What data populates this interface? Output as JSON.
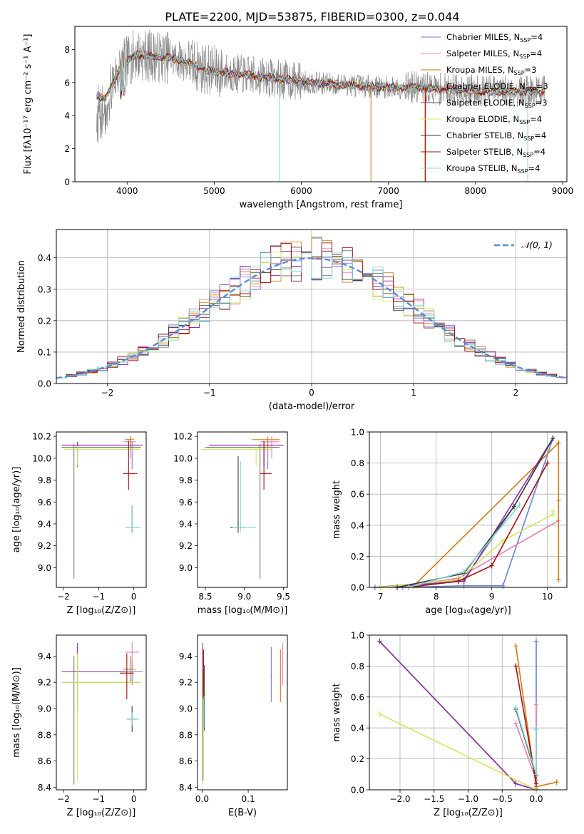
{
  "figure_title": "PLATE=2200, MJD=53875, FIBERID=0300, z=0.044",
  "colors": {
    "Chabrier MILES": "#6a7fd8",
    "Salpeter MILES": "#e87fb0",
    "Kroupa MILES": "#cf7a12",
    "Chabrier ELODIE": "#7a7a7a",
    "Salpeter ELODIE": "#8e2ea8",
    "Kroupa ELODIE": "#d2e65a",
    "Chabrier STELIB": "#3a3a3a",
    "Salpeter STELIB": "#a01010",
    "Kroupa STELIB": "#7fd6d6",
    "data": "#8a8a8a",
    "gaussian": "#5b8bd6"
  },
  "chart_data": [
    {
      "id": "spectrum",
      "type": "line",
      "xlabel": "wavelength [Angstrom, rest frame]",
      "ylabel": "Flux [fλ10⁻¹⁷ erg cm⁻² s⁻¹ A⁻¹]",
      "xlim": [
        3400,
        9050
      ],
      "ylim": [
        0,
        9.4
      ],
      "xticks": [
        4000,
        5000,
        6000,
        7000,
        8000,
        9000
      ],
      "yticks": [
        0,
        2,
        4,
        6,
        8
      ],
      "legend_position": "top-right",
      "legend": [
        {
          "label": "Chabrier MILES, N",
          "sub": "SSP",
          "tail": "=4"
        },
        {
          "label": "Salpeter MILES, N",
          "sub": "SSP",
          "tail": "=4"
        },
        {
          "label": "Kroupa MILES, N",
          "sub": "SSP",
          "tail": "=3"
        },
        {
          "label": "Chabrier ELODIE, N",
          "sub": "SSP",
          "tail": "=3"
        },
        {
          "label": "Salpeter ELODIE, N",
          "sub": "SSP",
          "tail": "=3"
        },
        {
          "label": "Kroupa ELODIE, N",
          "sub": "SSP",
          "tail": "=4"
        },
        {
          "label": "Chabrier STELIB, N",
          "sub": "SSP",
          "tail": "=4"
        },
        {
          "label": "Salpeter STELIB, N",
          "sub": "SSP",
          "tail": "=4"
        },
        {
          "label": "Kroupa STELIB, N",
          "sub": "SSP",
          "tail": "=4"
        }
      ],
      "continuum": [
        [
          3650,
          5.2
        ],
        [
          3750,
          5.0
        ],
        [
          3800,
          5.6
        ],
        [
          3900,
          6.7
        ],
        [
          4000,
          7.3
        ],
        [
          4100,
          7.7
        ],
        [
          4300,
          7.6
        ],
        [
          4500,
          7.5
        ],
        [
          4700,
          7.2
        ],
        [
          4900,
          6.8
        ],
        [
          5100,
          6.6
        ],
        [
          5300,
          6.5
        ],
        [
          5500,
          6.4
        ],
        [
          5800,
          6.2
        ],
        [
          6100,
          6.0
        ],
        [
          6400,
          5.9
        ],
        [
          6700,
          5.8
        ],
        [
          7000,
          5.7
        ],
        [
          7300,
          5.7
        ],
        [
          7600,
          5.6
        ],
        [
          8000,
          5.5
        ],
        [
          8400,
          5.45
        ],
        [
          8800,
          5.5
        ]
      ],
      "model_range": [
        3650,
        8800
      ]
    },
    {
      "id": "residuals",
      "type": "histogram",
      "xlabel": "(data-model)/error",
      "ylabel": "Normed distribution",
      "xlim": [
        -2.5,
        2.5
      ],
      "ylim": [
        0,
        0.49
      ],
      "xticks": [
        -2,
        -1,
        0,
        1,
        2
      ],
      "yticks": [
        0.0,
        0.1,
        0.2,
        0.3,
        0.4
      ],
      "grid": true,
      "bin_width": 0.1,
      "legend_position": "top-right",
      "gaussian_label": "𝒩(0, 1)"
    },
    {
      "id": "age_vs_Z",
      "type": "errorbar",
      "xlabel": "Z [log₁₀(Z/Z⊙)]",
      "ylabel": "age  [log₁₀(age/yr)]",
      "xlim": [
        -2.2,
        0.35
      ],
      "ylim": [
        8.82,
        10.24
      ],
      "xticks": [
        -2,
        -1,
        0
      ],
      "yticks": [
        9.0,
        9.2,
        9.4,
        9.6,
        9.8,
        10.0,
        10.2
      ],
      "points": [
        {
          "model": "Chabrier MILES",
          "x": -0.05,
          "y": 10.1,
          "xerr": [
            0.3,
            0.2
          ],
          "yerr": [
            0.2,
            0.05
          ]
        },
        {
          "model": "Salpeter MILES",
          "x": -0.1,
          "y": 10.15,
          "xerr": [
            0.2,
            0.15
          ],
          "yerr": [
            0.15,
            0.05
          ]
        },
        {
          "model": "Kroupa MILES",
          "x": -0.1,
          "y": 10.17,
          "xerr": [
            0.15,
            0.1
          ],
          "yerr": [
            0.1,
            0.03
          ]
        },
        {
          "model": "Chabrier ELODIE",
          "x": -1.7,
          "y": 10.1,
          "xerr": [
            0.35,
            1.9
          ],
          "yerr": [
            1.2,
            0.03
          ]
        },
        {
          "model": "Salpeter ELODIE",
          "x": -1.6,
          "y": 10.12,
          "xerr": [
            0.45,
            1.85
          ],
          "yerr": [
            0.2,
            0.03
          ]
        },
        {
          "model": "Kroupa ELODIE",
          "x": -1.6,
          "y": 10.08,
          "xerr": [
            0.4,
            1.8
          ],
          "yerr": [
            0.15,
            0.03
          ]
        },
        {
          "model": "Chabrier STELIB",
          "x": -0.05,
          "y": 9.37,
          "xerr": [
            0.15,
            0.15
          ],
          "yerr": [
            0.05,
            0.2
          ]
        },
        {
          "model": "Salpeter STELIB",
          "x": -0.15,
          "y": 9.86,
          "xerr": [
            0.15,
            0.25
          ],
          "yerr": [
            0.15,
            0.3
          ]
        },
        {
          "model": "Kroupa STELIB",
          "x": -0.05,
          "y": 9.37,
          "xerr": [
            0.2,
            0.25
          ],
          "yerr": [
            0.05,
            0.2
          ]
        }
      ]
    },
    {
      "id": "age_vs_mass",
      "type": "errorbar",
      "xlabel": "mass [log₁₀(M/M⊙)]",
      "ylabel": "",
      "xlim": [
        8.4,
        9.55
      ],
      "ylim": [
        8.82,
        10.24
      ],
      "xticks": [
        8.5,
        9.0,
        9.5
      ],
      "yticks": [
        9.0,
        9.2,
        9.4,
        9.6,
        9.8,
        10.0,
        10.2
      ],
      "points": [
        {
          "model": "Chabrier MILES",
          "x": 9.3,
          "y": 10.1,
          "xerr": [
            0.2,
            0.1
          ],
          "yerr": [
            0.2,
            0.05
          ]
        },
        {
          "model": "Salpeter MILES",
          "x": 9.35,
          "y": 10.15,
          "xerr": [
            0.15,
            0.1
          ],
          "yerr": [
            0.15,
            0.05
          ]
        },
        {
          "model": "Kroupa MILES",
          "x": 9.3,
          "y": 10.17,
          "xerr": [
            0.2,
            0.15
          ],
          "yerr": [
            0.1,
            0.03
          ]
        },
        {
          "model": "Chabrier ELODIE",
          "x": 9.2,
          "y": 10.1,
          "xerr": [
            0.7,
            0.25
          ],
          "yerr": [
            1.2,
            0.03
          ]
        },
        {
          "model": "Salpeter ELODIE",
          "x": 9.25,
          "y": 10.12,
          "xerr": [
            0.7,
            0.25
          ],
          "yerr": [
            0.2,
            0.03
          ]
        },
        {
          "model": "Kroupa ELODIE",
          "x": 9.15,
          "y": 10.08,
          "xerr": [
            0.7,
            0.2
          ],
          "yerr": [
            0.15,
            0.03
          ]
        },
        {
          "model": "Chabrier STELIB",
          "x": 8.92,
          "y": 9.37,
          "xerr": [
            0.1,
            0.1
          ],
          "yerr": [
            0.05,
            0.65
          ]
        },
        {
          "model": "Salpeter STELIB",
          "x": 9.25,
          "y": 9.86,
          "xerr": [
            0.05,
            0.1
          ],
          "yerr": [
            0.15,
            0.3
          ]
        },
        {
          "model": "Kroupa STELIB",
          "x": 8.95,
          "y": 9.37,
          "xerr": [
            0.1,
            0.2
          ],
          "yerr": [
            0.05,
            0.6
          ]
        }
      ]
    },
    {
      "id": "massweight_vs_age",
      "type": "line",
      "xlabel": "age  [log₁₀(age/yr)]",
      "ylabel": "mass weight",
      "xlim": [
        6.8,
        10.35
      ],
      "ylim": [
        0,
        1.0
      ],
      "xticks": [
        7,
        8,
        9,
        10
      ],
      "yticks": [
        0.0,
        0.2,
        0.4,
        0.6,
        0.8,
        1.0
      ],
      "grid": true,
      "series": [
        {
          "model": "Chabrier MILES",
          "x": [
            7.4,
            8.5,
            9.2,
            10.1
          ],
          "y": [
            0.0,
            0.01,
            0.01,
            0.96
          ]
        },
        {
          "model": "Salpeter MILES",
          "x": [
            7.3,
            8.4,
            10.2
          ],
          "y": [
            0.0,
            0.06,
            0.43
          ]
        },
        {
          "model": "Kroupa MILES",
          "x": [
            7.6,
            10.2,
            10.2,
            10.2
          ],
          "y": [
            0.01,
            0.93,
            0.56,
            0.05
          ]
        },
        {
          "model": "Chabrier ELODIE",
          "x": [
            6.9,
            8.5,
            9.4,
            10.1
          ],
          "y": [
            0.0,
            0.05,
            0.52,
            0.96
          ]
        },
        {
          "model": "Salpeter ELODIE",
          "x": [
            7.0,
            8.5,
            10.1
          ],
          "y": [
            0.0,
            0.04,
            0.96
          ]
        },
        {
          "model": "Kroupa ELODIE",
          "x": [
            7.0,
            8.4,
            9.2,
            10.1,
            10.1
          ],
          "y": [
            0.0,
            0.05,
            0.3,
            0.47,
            0.49
          ]
        },
        {
          "model": "Chabrier STELIB",
          "x": [
            7.3,
            8.5,
            9.4,
            10.1
          ],
          "y": [
            0.0,
            0.09,
            0.52,
            0.96
          ]
        },
        {
          "model": "Salpeter STELIB",
          "x": [
            7.5,
            8.4,
            9.0,
            10.0
          ],
          "y": [
            0.0,
            0.04,
            0.14,
            0.8
          ]
        },
        {
          "model": "Kroupa STELIB",
          "x": [
            7.5,
            8.5,
            9.5
          ],
          "y": [
            0.0,
            0.1,
            0.53
          ]
        }
      ]
    },
    {
      "id": "mass_vs_Z",
      "type": "errorbar",
      "xlabel": "Z [log₁₀(Z/Z⊙)]",
      "ylabel": "mass [log₁₀(M/M⊙)]",
      "xlim": [
        -2.2,
        0.35
      ],
      "ylim": [
        8.38,
        9.56
      ],
      "xticks": [
        -2,
        -1,
        0
      ],
      "yticks": [
        8.4,
        8.6,
        8.8,
        9.0,
        9.2,
        9.4
      ],
      "points": [
        {
          "model": "Chabrier MILES",
          "x": -0.05,
          "y": 9.28,
          "xerr": [
            0.3,
            0.3
          ],
          "yerr": [
            0.1,
            0.1
          ]
        },
        {
          "model": "Salpeter MILES",
          "x": -0.05,
          "y": 9.43,
          "xerr": [
            0.2,
            0.2
          ],
          "yerr": [
            0.1,
            0.08
          ]
        },
        {
          "model": "Kroupa MILES",
          "x": -0.1,
          "y": 9.3,
          "xerr": [
            0.2,
            0.15
          ],
          "yerr": [
            0.1,
            0.1
          ]
        },
        {
          "model": "Chabrier ELODIE",
          "x": -1.7,
          "y": 9.2,
          "xerr": [
            0.35,
            1.9
          ],
          "yerr": [
            0.78,
            0.2
          ]
        },
        {
          "model": "Salpeter ELODIE",
          "x": -1.6,
          "y": 9.28,
          "xerr": [
            0.45,
            1.35
          ],
          "yerr": [
            0.3,
            0.22
          ]
        },
        {
          "model": "Kroupa ELODIE",
          "x": -1.6,
          "y": 9.2,
          "xerr": [
            0.45,
            1.8
          ],
          "yerr": [
            0.75,
            0.22
          ]
        },
        {
          "model": "Chabrier STELIB",
          "x": -0.05,
          "y": 8.92,
          "xerr": [
            0.15,
            0.15
          ],
          "yerr": [
            0.1,
            0.1
          ]
        },
        {
          "model": "Salpeter STELIB",
          "x": -0.2,
          "y": 9.27,
          "xerr": [
            0.2,
            0.2
          ],
          "yerr": [
            0.2,
            0.15
          ]
        },
        {
          "model": "Kroupa STELIB",
          "x": -0.05,
          "y": 8.92,
          "xerr": [
            0.15,
            0.2
          ],
          "yerr": [
            0.05,
            0.05
          ]
        }
      ]
    },
    {
      "id": "mass_vs_EBV",
      "type": "errorbar",
      "xlabel": "E(B-V)",
      "ylabel": "",
      "xlim": [
        -0.01,
        0.185
      ],
      "ylim": [
        8.38,
        9.56
      ],
      "xticks": [
        0.0,
        0.1
      ],
      "yticks": [
        8.4,
        8.6,
        8.8,
        9.0,
        9.2,
        9.4
      ],
      "points": [
        {
          "model": "Chabrier MILES",
          "x": 0.15,
          "y": 9.25,
          "xerr": [
            0,
            0
          ],
          "yerr": [
            0.2,
            0.22
          ]
        },
        {
          "model": "Salpeter MILES",
          "x": 0.175,
          "y": 9.35,
          "xerr": [
            0,
            0
          ],
          "yerr": [
            0.17,
            0.15
          ]
        },
        {
          "model": "Kroupa MILES",
          "x": 0.17,
          "y": 9.25,
          "xerr": [
            0,
            0
          ],
          "yerr": [
            0.2,
            0.2
          ]
        },
        {
          "model": "Chabrier ELODIE",
          "x": 0.002,
          "y": 9.0,
          "xerr": [
            0,
            0
          ],
          "yerr": [
            0.55,
            0.3
          ]
        },
        {
          "model": "Salpeter ELODIE",
          "x": 0.001,
          "y": 9.28,
          "xerr": [
            0,
            0
          ],
          "yerr": [
            0.2,
            0.22
          ]
        },
        {
          "model": "Kroupa ELODIE",
          "x": 0.0,
          "y": 9.0,
          "xerr": [
            0,
            0
          ],
          "yerr": [
            0.58,
            0.3
          ]
        },
        {
          "model": "Chabrier STELIB",
          "x": 0.005,
          "y": 9.1,
          "xerr": [
            0,
            0
          ],
          "yerr": [
            0.27,
            0.23
          ]
        },
        {
          "model": "Salpeter STELIB",
          "x": 0.003,
          "y": 9.25,
          "xerr": [
            0,
            0
          ],
          "yerr": [
            0.18,
            0.2
          ]
        },
        {
          "model": "Kroupa STELIB",
          "x": 0.004,
          "y": 9.0,
          "xerr": [
            0,
            0
          ],
          "yerr": [
            0.15,
            0.1
          ]
        }
      ]
    },
    {
      "id": "massweight_vs_Z",
      "type": "line",
      "xlabel": "Z [log₁₀(Z/Z⊙)]",
      "ylabel": "mass weight",
      "xlim": [
        -2.45,
        0.45
      ],
      "ylim": [
        0,
        1.0
      ],
      "xticks": [
        -2.0,
        -1.5,
        -1.0,
        -0.5,
        0.0
      ],
      "grid": true,
      "series": [
        {
          "model": "Chabrier MILES",
          "x": [
            0.0,
            0.0,
            0.0,
            0.0
          ],
          "y": [
            0.96,
            0.39,
            0.01,
            0.0
          ]
        },
        {
          "model": "Salpeter MILES",
          "x": [
            -0.3,
            0.0,
            0.0
          ],
          "y": [
            0.43,
            0.06,
            0.55
          ]
        },
        {
          "model": "Kroupa MILES",
          "x": [
            -0.3,
            0.0,
            0.3
          ],
          "y": [
            0.93,
            0.02,
            0.05
          ]
        },
        {
          "model": "Chabrier ELODIE",
          "x": [
            -2.3,
            -0.3,
            0.0
          ],
          "y": [
            0.96,
            0.04,
            0.0
          ]
        },
        {
          "model": "Salpeter ELODIE",
          "x": [
            -2.3,
            -0.3,
            0.0
          ],
          "y": [
            0.96,
            0.04,
            0.0
          ]
        },
        {
          "model": "Kroupa ELODIE",
          "x": [
            -2.3,
            0.0
          ],
          "y": [
            0.49,
            0.0
          ]
        },
        {
          "model": "Chabrier STELIB",
          "x": [
            -0.3,
            0.0
          ],
          "y": [
            0.52,
            0.09
          ]
        },
        {
          "model": "Salpeter STELIB",
          "x": [
            -0.3,
            0.0
          ],
          "y": [
            0.8,
            0.04
          ]
        },
        {
          "model": "Kroupa STELIB",
          "x": [
            -0.3,
            0.0,
            0.0
          ],
          "y": [
            0.53,
            0.1,
            0.39
          ]
        }
      ]
    }
  ]
}
